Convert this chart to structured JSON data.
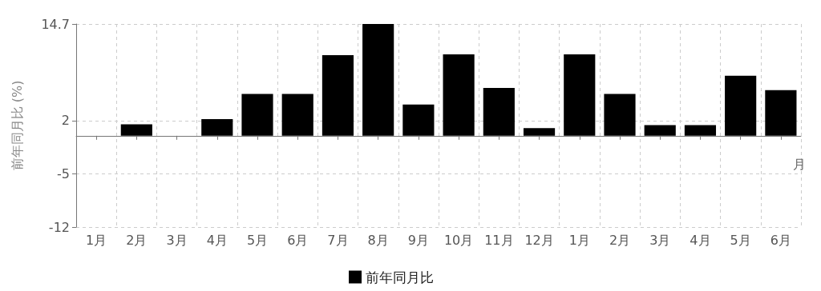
{
  "chart_data": {
    "type": "bar",
    "ylabel": "前年同月比 (%)",
    "xlabel": "月",
    "categories": [
      "1月",
      "2月",
      "3月",
      "4月",
      "5月",
      "6月",
      "7月",
      "8月",
      "9月",
      "10月",
      "11月",
      "12月",
      "1月",
      "2月",
      "3月",
      "4月",
      "5月",
      "6月"
    ],
    "series": [
      {
        "name": "前年同月比",
        "color": "#000000",
        "values": [
          0,
          1.5,
          0,
          2.2,
          5.5,
          5.5,
          10.6,
          14.7,
          4.1,
          10.7,
          6.3,
          1.0,
          10.7,
          5.5,
          1.4,
          1.4,
          7.9,
          6.0
        ]
      }
    ],
    "ylim": [
      -12,
      14.7
    ],
    "yticks": [
      -12,
      -5,
      2,
      14.7
    ],
    "grid": true,
    "legend": "bottom"
  }
}
